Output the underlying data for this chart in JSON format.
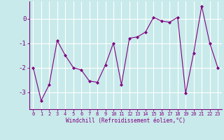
{
  "x": [
    0,
    1,
    2,
    3,
    4,
    5,
    6,
    7,
    8,
    9,
    10,
    11,
    12,
    13,
    14,
    15,
    16,
    17,
    18,
    19,
    20,
    21,
    22,
    23
  ],
  "y": [
    -2.0,
    -3.35,
    -2.7,
    -0.9,
    -1.5,
    -2.0,
    -2.1,
    -2.55,
    -2.6,
    -1.9,
    -1.0,
    -2.7,
    -0.8,
    -0.75,
    -0.55,
    0.05,
    -0.1,
    -0.15,
    0.05,
    -3.05,
    -1.4,
    0.5,
    -1.0,
    -2.0
  ],
  "line_color": "#800080",
  "marker": "D",
  "marker_size": 2.0,
  "bg_color": "#c8eaea",
  "grid_color": "#ffffff",
  "xlabel": "Windchill (Refroidissement éolien,°C)",
  "xlim": [
    -0.5,
    23.5
  ],
  "ylim": [
    -3.7,
    0.7
  ],
  "yticks": [
    0,
    -1,
    -2,
    -3
  ],
  "xticks": [
    0,
    1,
    2,
    3,
    4,
    5,
    6,
    7,
    8,
    9,
    10,
    11,
    12,
    13,
    14,
    15,
    16,
    17,
    18,
    19,
    20,
    21,
    22,
    23
  ]
}
